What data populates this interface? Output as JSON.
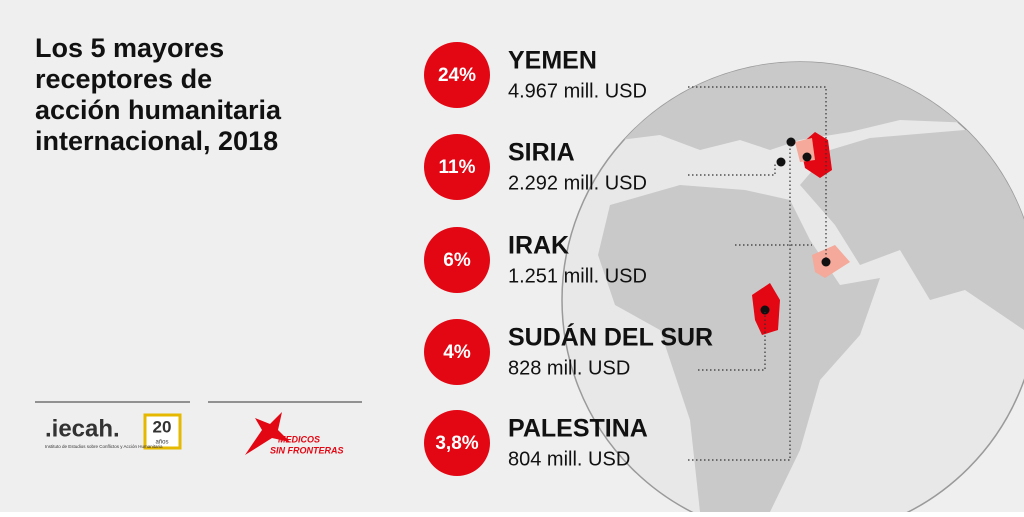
{
  "header": {
    "title_lines": [
      "Los 5 mayores",
      "receptores de",
      "acción humanitaria",
      "internacional, 2018"
    ]
  },
  "items": [
    {
      "share": "24%",
      "country": "YEMEN",
      "amount": "4.967 mill. USD"
    },
    {
      "share": "11%",
      "country": "SIRIA",
      "amount": "2.292 mill. USD"
    },
    {
      "share": "6%",
      "country": "IRAK",
      "amount": "1.251 mill. USD"
    },
    {
      "share": "4%",
      "country": "SUDÁN DEL SUR",
      "amount": "828 mill. USD"
    },
    {
      "share": "3,8%",
      "country": "PALESTINA",
      "amount": "804 mill. USD"
    }
  ],
  "logos": {
    "iecah": ".iecah.",
    "iecah_years": "20",
    "iecah_years_unit": "años",
    "iecah_subtitle": "Instituto de Estudios sobre Conflictos y Acción Humanitaria",
    "msf_line1": "MEDICOS",
    "msf_line2": "SIN FRONTERAS"
  }
}
